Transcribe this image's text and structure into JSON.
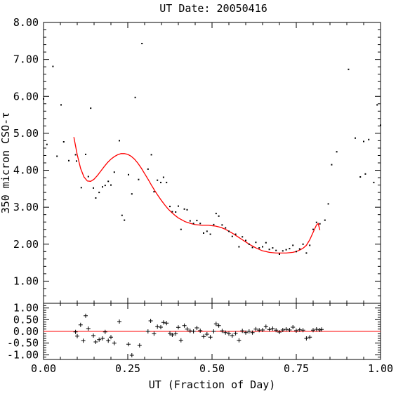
{
  "chart_data": [
    {
      "type": "scatter",
      "title": "UT Date: 20050416",
      "ylabel": "350 micron CSO-τ",
      "xlim": [
        0.0,
        1.0
      ],
      "ylim": [
        0.4,
        8.0
      ],
      "yticks": [
        "1.00",
        "2.00",
        "3.00",
        "4.00",
        "5.00",
        "6.00",
        "7.00",
        "8.00"
      ],
      "colors": {
        "points": "#000000",
        "fit": "#ff0000"
      },
      "series": [
        {
          "values": [
            [
              0.0,
              5.93
            ],
            [
              0.01,
              4.7
            ],
            [
              0.028,
              6.81
            ],
            [
              0.04,
              4.38
            ],
            [
              0.052,
              5.77
            ],
            [
              0.06,
              4.77
            ],
            [
              0.075,
              4.26
            ],
            [
              0.095,
              4.42
            ],
            [
              0.098,
              4.25
            ],
            [
              0.112,
              3.53
            ],
            [
              0.125,
              4.43
            ],
            [
              0.133,
              3.83
            ],
            [
              0.14,
              5.68
            ],
            [
              0.148,
              3.52
            ],
            [
              0.155,
              3.25
            ],
            [
              0.165,
              3.4
            ],
            [
              0.175,
              3.55
            ],
            [
              0.183,
              3.59
            ],
            [
              0.192,
              3.7
            ],
            [
              0.2,
              3.6
            ],
            [
              0.21,
              3.95
            ],
            [
              0.225,
              4.8
            ],
            [
              0.233,
              2.78
            ],
            [
              0.24,
              2.65
            ],
            [
              0.252,
              3.88
            ],
            [
              0.262,
              3.36
            ],
            [
              0.272,
              5.97
            ],
            [
              0.282,
              3.75
            ],
            [
              0.292,
              7.43
            ],
            [
              0.31,
              4.03
            ],
            [
              0.32,
              4.42
            ],
            [
              0.328,
              3.42
            ],
            [
              0.338,
              3.73
            ],
            [
              0.348,
              3.67
            ],
            [
              0.356,
              3.81
            ],
            [
              0.365,
              3.67
            ],
            [
              0.375,
              3.02
            ],
            [
              0.382,
              2.88
            ],
            [
              0.392,
              2.87
            ],
            [
              0.4,
              3.03
            ],
            [
              0.408,
              2.4
            ],
            [
              0.418,
              2.95
            ],
            [
              0.426,
              2.93
            ],
            [
              0.435,
              2.63
            ],
            [
              0.445,
              2.56
            ],
            [
              0.455,
              2.64
            ],
            [
              0.465,
              2.56
            ],
            [
              0.475,
              2.3
            ],
            [
              0.485,
              2.35
            ],
            [
              0.495,
              2.27
            ],
            [
              0.505,
              2.53
            ],
            [
              0.512,
              2.83
            ],
            [
              0.52,
              2.76
            ],
            [
              0.53,
              2.52
            ],
            [
              0.54,
              2.44
            ],
            [
              0.55,
              2.35
            ],
            [
              0.56,
              2.21
            ],
            [
              0.57,
              2.27
            ],
            [
              0.58,
              1.93
            ],
            [
              0.59,
              2.2
            ],
            [
              0.6,
              2.1
            ],
            [
              0.61,
              2.0
            ],
            [
              0.62,
              1.91
            ],
            [
              0.63,
              2.05
            ],
            [
              0.64,
              1.9
            ],
            [
              0.65,
              1.93
            ],
            [
              0.66,
              2.04
            ],
            [
              0.67,
              1.86
            ],
            [
              0.68,
              1.9
            ],
            [
              0.69,
              1.83
            ],
            [
              0.7,
              1.73
            ],
            [
              0.71,
              1.82
            ],
            [
              0.72,
              1.85
            ],
            [
              0.73,
              1.88
            ],
            [
              0.74,
              1.97
            ],
            [
              0.75,
              1.8
            ],
            [
              0.76,
              1.87
            ],
            [
              0.77,
              2.0
            ],
            [
              0.78,
              1.76
            ],
            [
              0.79,
              1.97
            ],
            [
              0.8,
              2.4
            ],
            [
              0.81,
              2.59
            ],
            [
              0.82,
              2.55
            ],
            [
              0.835,
              2.65
            ],
            [
              0.845,
              3.09
            ],
            [
              0.855,
              4.15
            ],
            [
              0.87,
              4.5
            ],
            [
              0.905,
              6.73
            ],
            [
              0.925,
              4.87
            ],
            [
              0.94,
              3.82
            ],
            [
              0.95,
              4.78
            ],
            [
              0.955,
              3.9
            ],
            [
              0.965,
              4.83
            ],
            [
              0.98,
              3.67
            ],
            [
              0.99,
              5.77
            ],
            [
              1.0,
              5.22
            ]
          ]
        }
      ],
      "fit": {
        "x": [
          0.09,
          0.1,
          0.11,
          0.12,
          0.13,
          0.14,
          0.15,
          0.16,
          0.17,
          0.18,
          0.19,
          0.2,
          0.21,
          0.22,
          0.23,
          0.24,
          0.25,
          0.26,
          0.27,
          0.28,
          0.29,
          0.3,
          0.31,
          0.32,
          0.33,
          0.34,
          0.35,
          0.36,
          0.37,
          0.38,
          0.39,
          0.4,
          0.41,
          0.42,
          0.43,
          0.44,
          0.45,
          0.46,
          0.47,
          0.48,
          0.49,
          0.5,
          0.51,
          0.52,
          0.53,
          0.54,
          0.55,
          0.56,
          0.57,
          0.58,
          0.59,
          0.6,
          0.61,
          0.62,
          0.63,
          0.64,
          0.65,
          0.66,
          0.67,
          0.68,
          0.69,
          0.7,
          0.71,
          0.72,
          0.73,
          0.74,
          0.75,
          0.76,
          0.77,
          0.78,
          0.79,
          0.8,
          0.81,
          0.815,
          0.82
        ],
        "y": [
          4.9,
          4.42,
          4.05,
          3.82,
          3.71,
          3.7,
          3.76,
          3.86,
          3.98,
          4.1,
          4.21,
          4.3,
          4.37,
          4.42,
          4.45,
          4.45,
          4.43,
          4.38,
          4.3,
          4.19,
          4.06,
          3.91,
          3.76,
          3.6,
          3.45,
          3.31,
          3.18,
          3.06,
          2.95,
          2.86,
          2.78,
          2.71,
          2.66,
          2.61,
          2.58,
          2.55,
          2.53,
          2.52,
          2.51,
          2.51,
          2.51,
          2.5,
          2.49,
          2.47,
          2.44,
          2.4,
          2.35,
          2.3,
          2.24,
          2.18,
          2.12,
          2.06,
          2.0,
          1.95,
          1.9,
          1.86,
          1.82,
          1.8,
          1.78,
          1.77,
          1.76,
          1.76,
          1.76,
          1.76,
          1.77,
          1.78,
          1.8,
          1.84,
          1.89,
          1.97,
          2.12,
          2.32,
          2.52,
          2.56,
          2.38
        ]
      }
    },
    {
      "type": "scatter",
      "xlabel": "UT (Fraction of Day)",
      "xlim": [
        0.0,
        1.0
      ],
      "ylim": [
        -1.2,
        1.2
      ],
      "xticks": [
        "0.00",
        "0.25",
        "0.50",
        "0.75",
        "1.00"
      ],
      "yticks": [
        "-1.00",
        "-0.50",
        "0.00",
        "0.50",
        "1.00"
      ],
      "reference_line": 0.0,
      "colors": {
        "points": "#000000",
        "reference": "#ff0000"
      },
      "series": [
        {
          "values": [
            [
              0.095,
              -0.02
            ],
            [
              0.1,
              -0.2
            ],
            [
              0.11,
              0.28
            ],
            [
              0.118,
              -0.4
            ],
            [
              0.125,
              0.67
            ],
            [
              0.133,
              0.12
            ],
            [
              0.148,
              -0.18
            ],
            [
              0.155,
              -0.45
            ],
            [
              0.165,
              -0.35
            ],
            [
              0.175,
              -0.3
            ],
            [
              0.183,
              -0.02
            ],
            [
              0.192,
              -0.4
            ],
            [
              0.2,
              -0.25
            ],
            [
              0.21,
              -0.5
            ],
            [
              0.225,
              0.42
            ],
            [
              0.252,
              -0.55
            ],
            [
              0.262,
              -1.02
            ],
            [
              0.285,
              -0.6
            ],
            [
              0.31,
              0.0
            ],
            [
              0.318,
              0.45
            ],
            [
              0.328,
              -0.1
            ],
            [
              0.338,
              0.2
            ],
            [
              0.348,
              0.18
            ],
            [
              0.356,
              0.38
            ],
            [
              0.365,
              0.35
            ],
            [
              0.375,
              -0.08
            ],
            [
              0.382,
              -0.15
            ],
            [
              0.392,
              -0.1
            ],
            [
              0.4,
              0.17
            ],
            [
              0.408,
              -0.38
            ],
            [
              0.418,
              0.25
            ],
            [
              0.426,
              0.1
            ],
            [
              0.435,
              0.02
            ],
            [
              0.445,
              0.0
            ],
            [
              0.455,
              0.15
            ],
            [
              0.465,
              0.03
            ],
            [
              0.475,
              -0.22
            ],
            [
              0.485,
              -0.12
            ],
            [
              0.495,
              -0.25
            ],
            [
              0.505,
              0.0
            ],
            [
              0.512,
              0.32
            ],
            [
              0.52,
              0.25
            ],
            [
              0.53,
              0.02
            ],
            [
              0.54,
              -0.05
            ],
            [
              0.55,
              -0.1
            ],
            [
              0.56,
              -0.18
            ],
            [
              0.57,
              -0.08
            ],
            [
              0.58,
              -0.38
            ],
            [
              0.59,
              0.02
            ],
            [
              0.6,
              -0.05
            ],
            [
              0.61,
              0.0
            ],
            [
              0.62,
              -0.05
            ],
            [
              0.63,
              0.1
            ],
            [
              0.64,
              0.05
            ],
            [
              0.65,
              0.06
            ],
            [
              0.66,
              0.2
            ],
            [
              0.67,
              0.08
            ],
            [
              0.68,
              0.12
            ],
            [
              0.69,
              0.05
            ],
            [
              0.7,
              -0.03
            ],
            [
              0.71,
              0.06
            ],
            [
              0.72,
              0.09
            ],
            [
              0.73,
              0.06
            ],
            [
              0.74,
              0.18
            ],
            [
              0.75,
              0.03
            ],
            [
              0.76,
              0.07
            ],
            [
              0.77,
              0.05
            ],
            [
              0.78,
              -0.3
            ],
            [
              0.79,
              -0.25
            ],
            [
              0.8,
              0.05
            ],
            [
              0.81,
              0.09
            ],
            [
              0.82,
              0.06
            ],
            [
              0.825,
              0.08
            ]
          ]
        }
      ]
    }
  ]
}
